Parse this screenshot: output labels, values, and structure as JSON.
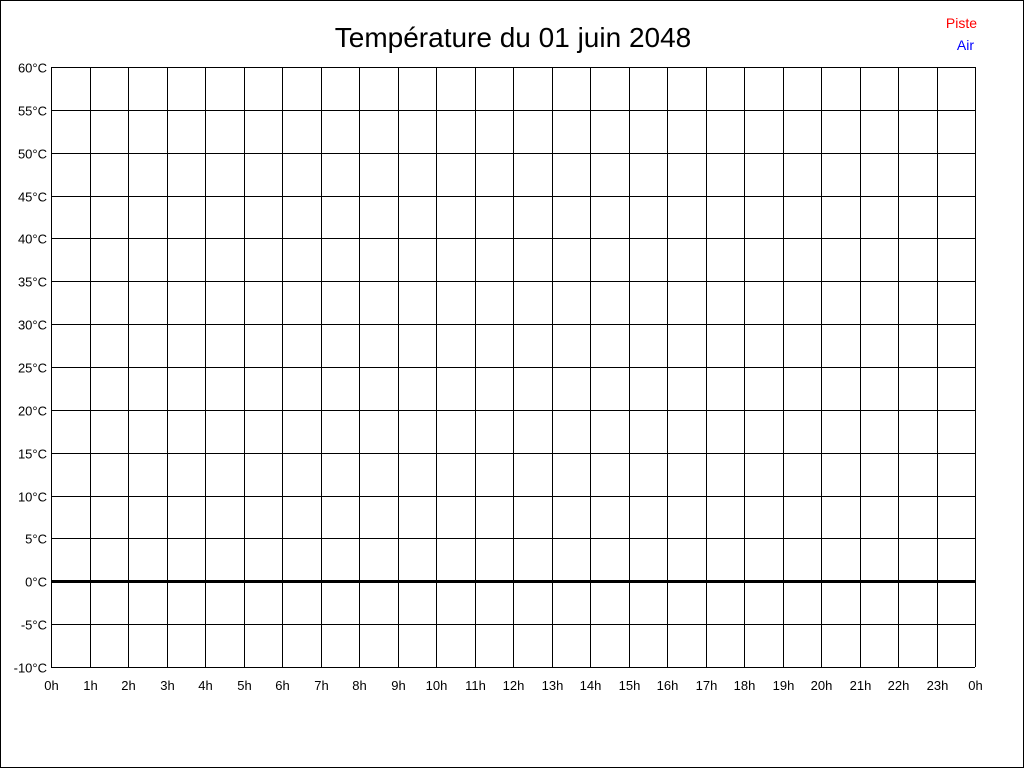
{
  "chart_data": {
    "type": "line",
    "title": "Température du 01 juin 2048",
    "xlabel": "",
    "ylabel": "",
    "x_ticks": [
      "0h",
      "1h",
      "2h",
      "3h",
      "4h",
      "5h",
      "6h",
      "7h",
      "8h",
      "9h",
      "10h",
      "11h",
      "12h",
      "13h",
      "14h",
      "15h",
      "16h",
      "17h",
      "18h",
      "19h",
      "20h",
      "21h",
      "22h",
      "23h",
      "0h"
    ],
    "y_ticks": [
      "-10°C",
      "-5°C",
      "0°C",
      "5°C",
      "10°C",
      "15°C",
      "20°C",
      "25°C",
      "30°C",
      "35°C",
      "40°C",
      "45°C",
      "50°C",
      "55°C",
      "60°C"
    ],
    "ylim": [
      -10,
      60
    ],
    "xlim": [
      0,
      24
    ],
    "grid": true,
    "legend_position": "top-right",
    "series": [
      {
        "name": "Piste",
        "color": "#ff0000",
        "values": []
      },
      {
        "name": "Air",
        "color": "#0000ff",
        "values": []
      }
    ]
  }
}
